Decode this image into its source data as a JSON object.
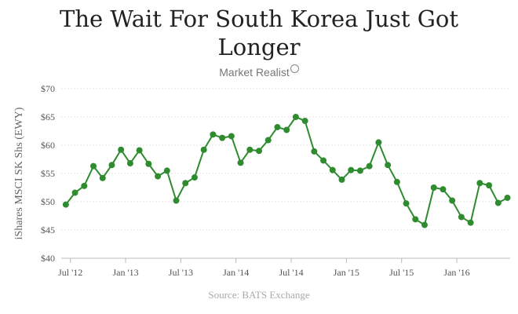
{
  "chart_data": {
    "type": "line",
    "title_line1": "The Wait For South Korea Just Got",
    "title_line2": "Longer",
    "brand": "Market Realist",
    "source": "Source: BATS Exchange",
    "ylabel": "iShares MSCI SK Shs (EWY)",
    "ylim": [
      40,
      70
    ],
    "yticks": [
      40,
      45,
      50,
      55,
      60,
      65,
      70
    ],
    "ytick_labels": [
      "$40",
      "$45",
      "$50",
      "$55",
      "$60",
      "$65",
      "$70"
    ],
    "xlim": [
      -0.5,
      48.3
    ],
    "xticks": [
      0.5,
      6.5,
      12.5,
      18.5,
      24.5,
      30.5,
      36.5,
      42.5
    ],
    "xtick_labels": [
      "Jul '12",
      "Jan '13",
      "Jul '13",
      "Jan '14",
      "Jul '14",
      "Jan '15",
      "Jul '15",
      "Jan '16"
    ],
    "grid": true,
    "line_color": "#2e8b2e",
    "series": [
      {
        "values": [
          49.5,
          51.6,
          52.8,
          56.3,
          54.2,
          56.5,
          59.2,
          56.8,
          59.1,
          56.7,
          54.5,
          55.5,
          50.2,
          53.3,
          54.3,
          59.2,
          61.9,
          61.3,
          61.6,
          56.9,
          59.2,
          59.0,
          60.9,
          63.2,
          62.7,
          65.0,
          64.3,
          58.9,
          57.3,
          55.6,
          53.9,
          55.6,
          55.5,
          56.3,
          60.5,
          56.5,
          53.5,
          49.7,
          46.9,
          45.9,
          52.5,
          52.2,
          50.2,
          47.3,
          46.3,
          53.3,
          52.9,
          49.8,
          50.7
        ]
      }
    ]
  }
}
